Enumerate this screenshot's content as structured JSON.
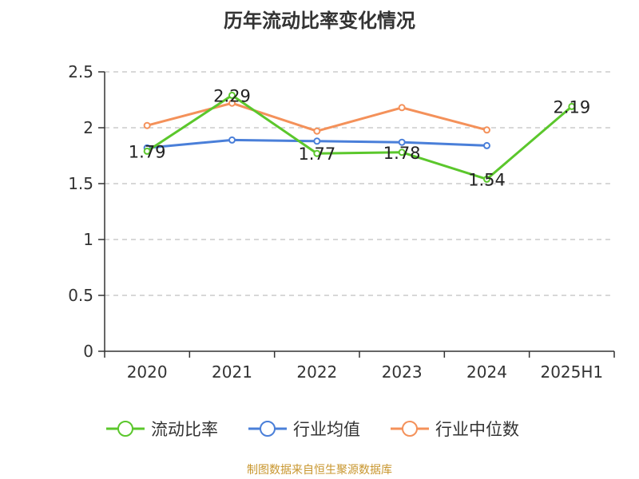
{
  "title": "历年流动比率变化情况",
  "source": "制图数据来自恒生聚源数据库",
  "chart_data": {
    "type": "line",
    "title": "历年流动比率变化情况",
    "categories": [
      "2020",
      "2021",
      "2022",
      "2023",
      "2024",
      "2025H1"
    ],
    "ylim": [
      0,
      2.5
    ],
    "yticks": [
      0,
      0.5,
      1,
      1.5,
      2,
      2.5
    ],
    "ytick_labels": [
      "0",
      "0.5",
      "1",
      "1.5",
      "2",
      "2.5"
    ],
    "grid": true,
    "legend_position": "bottom",
    "series": [
      {
        "name": "流动比率",
        "color": "#5bc72c",
        "values": [
          1.79,
          2.29,
          1.77,
          1.78,
          1.54,
          2.19
        ],
        "labels": [
          "1.79",
          "2.29",
          "1.77",
          "1.78",
          "1.54",
          "2.19"
        ]
      },
      {
        "name": "行业均值",
        "color": "#4a7fd9",
        "values": [
          1.82,
          1.89,
          1.88,
          1.87,
          1.84,
          null
        ]
      },
      {
        "name": "行业中位数",
        "color": "#f4915a",
        "values": [
          2.02,
          2.22,
          1.97,
          2.18,
          1.98,
          null
        ]
      }
    ]
  }
}
